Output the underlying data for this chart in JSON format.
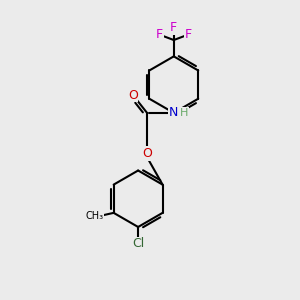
{
  "background_color": "#ebebeb",
  "figsize": [
    3.0,
    3.0
  ],
  "dpi": 100,
  "bond_color": "#000000",
  "bond_width": 1.5,
  "atom_colors": {
    "O": "#cc0000",
    "N": "#0000cc",
    "F": "#cc00cc",
    "Cl": "#336633",
    "C": "#000000",
    "H": "#6aaa6a"
  },
  "font_size": 9,
  "font_size_h": 8
}
